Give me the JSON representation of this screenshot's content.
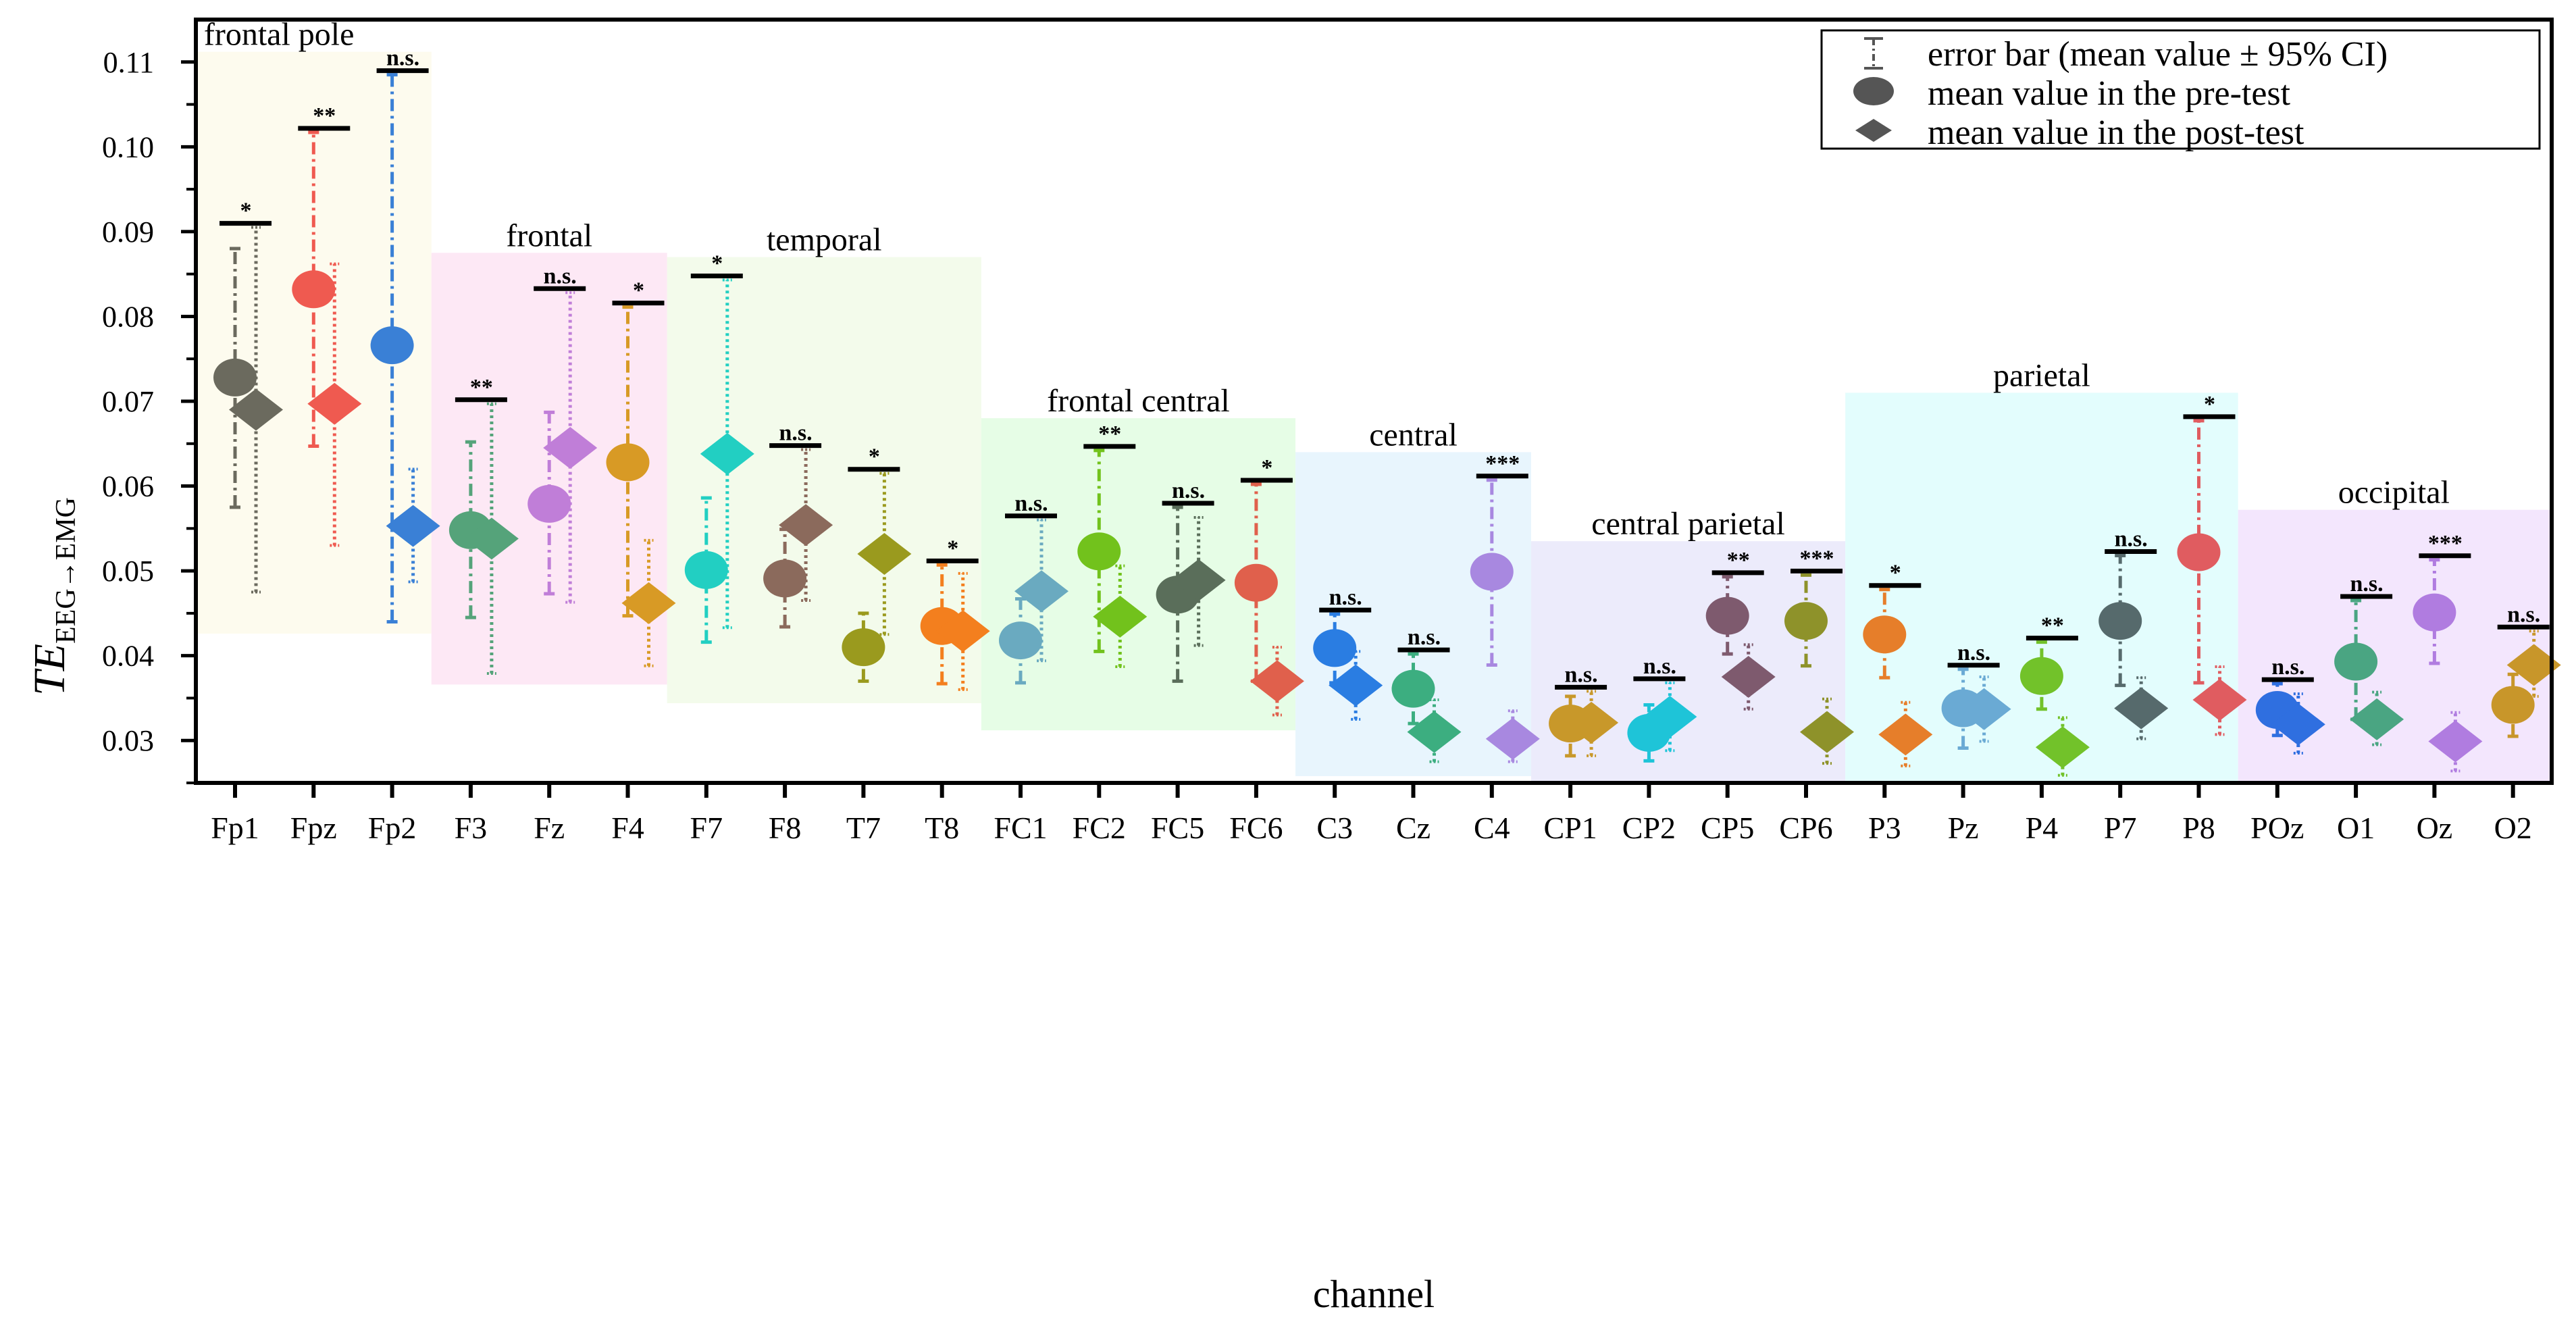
{
  "chart_data": {
    "type": "scatter",
    "title": "",
    "xlabel": "channel",
    "ylabel_main": "TE",
    "ylabel_sub": "EEG→EMG",
    "ylim": [
      0.025,
      0.115
    ],
    "yticks": [
      0.03,
      0.04,
      0.05,
      0.06,
      0.07,
      0.08,
      0.09,
      0.1,
      0.11
    ],
    "ytick_labels": [
      "0.03",
      "0.04",
      "0.05",
      "0.06",
      "0.07",
      "0.08",
      "0.09",
      "0.10",
      "0.11"
    ],
    "grid": false,
    "legend": {
      "placement": "top-right",
      "items": [
        {
          "marker": "errorbar",
          "label": "error bar (mean value ± 95% CI)"
        },
        {
          "marker": "circle",
          "label": "mean value in the pre-test"
        },
        {
          "marker": "diamond",
          "label": "mean value in the post-test"
        }
      ],
      "marker_color": "#555555"
    },
    "regions": [
      {
        "label": "frontal pole",
        "from": 0,
        "to": 2,
        "ymin": 0.0426,
        "ymax": 0.1112,
        "color": "#fdfbee"
      },
      {
        "label": "frontal",
        "from": 3,
        "to": 5,
        "ymin": 0.0366,
        "ymax": 0.0875,
        "color": "#fde8f5"
      },
      {
        "label": "temporal",
        "from": 6,
        "to": 9,
        "ymin": 0.0344,
        "ymax": 0.087,
        "color": "#f3fbeb"
      },
      {
        "label": "frontal central",
        "from": 10,
        "to": 13,
        "ymin": 0.0312,
        "ymax": 0.068,
        "color": "#e6fde6"
      },
      {
        "label": "central",
        "from": 14,
        "to": 16,
        "ymin": 0.0258,
        "ymax": 0.064,
        "color": "#e8f5fd"
      },
      {
        "label": "central parietal",
        "from": 17,
        "to": 20,
        "ymin": 0.025,
        "ymax": 0.0535,
        "color": "#ecebfb"
      },
      {
        "label": "parietal",
        "from": 21,
        "to": 25,
        "ymin": 0.025,
        "ymax": 0.071,
        "color": "#e3fdfd"
      },
      {
        "label": "occipital",
        "from": 26,
        "to": 29,
        "ymin": 0.025,
        "ymax": 0.0572,
        "color": "#f3e6fd"
      }
    ],
    "channels": [
      {
        "name": "Fp1",
        "color": "#6b6a5e",
        "pre": 0.0728,
        "pre_ci": [
          0.0575,
          0.088
        ],
        "post": 0.069,
        "post_ci": [
          0.0475,
          0.0905
        ],
        "sig": "*"
      },
      {
        "name": "Fpz",
        "color": "#ef5a50",
        "pre": 0.0832,
        "pre_ci": [
          0.0647,
          0.1017
        ],
        "post": 0.0697,
        "post_ci": [
          0.053,
          0.0862
        ],
        "sig": "**"
      },
      {
        "name": "Fp2",
        "color": "#3a80d6",
        "pre": 0.0766,
        "pre_ci": [
          0.044,
          0.1085
        ],
        "post": 0.0553,
        "post_ci": [
          0.0487,
          0.062
        ],
        "sig": "n.s."
      },
      {
        "name": "F3",
        "color": "#55a37a",
        "pre": 0.0548,
        "pre_ci": [
          0.0445,
          0.0652
        ],
        "post": 0.0538,
        "post_ci": [
          0.0379,
          0.0697
        ],
        "sig": "**"
      },
      {
        "name": "Fz",
        "color": "#c07ed8",
        "pre": 0.0579,
        "pre_ci": [
          0.0473,
          0.0687
        ],
        "post": 0.0645,
        "post_ci": [
          0.0463,
          0.0828
        ],
        "sig": "n.s."
      },
      {
        "name": "F4",
        "color": "#d89a25",
        "pre": 0.0628,
        "pre_ci": [
          0.0447,
          0.0811
        ],
        "post": 0.0462,
        "post_ci": [
          0.0388,
          0.0536
        ],
        "sig": "*"
      },
      {
        "name": "F7",
        "color": "#22cfc2",
        "pre": 0.0501,
        "pre_ci": [
          0.0416,
          0.0586
        ],
        "post": 0.0638,
        "post_ci": [
          0.0433,
          0.0843
        ],
        "sig": "*"
      },
      {
        "name": "F8",
        "color": "#8b6a5c",
        "pre": 0.0491,
        "pre_ci": [
          0.0434,
          0.0549
        ],
        "post": 0.0554,
        "post_ci": [
          0.0465,
          0.0643
        ],
        "sig": "n.s."
      },
      {
        "name": "T7",
        "color": "#9a9a1e",
        "pre": 0.041,
        "pre_ci": [
          0.037,
          0.045
        ],
        "post": 0.052,
        "post_ci": [
          0.0425,
          0.0615
        ],
        "sig": "*"
      },
      {
        "name": "T8",
        "color": "#f37f1e",
        "pre": 0.0435,
        "pre_ci": [
          0.0367,
          0.0507
        ],
        "post": 0.0429,
        "post_ci": [
          0.036,
          0.0497
        ],
        "sig": "*"
      },
      {
        "name": "FC1",
        "color": "#6aaac0",
        "pre": 0.0418,
        "pre_ci": [
          0.0368,
          0.0467
        ],
        "post": 0.0476,
        "post_ci": [
          0.0394,
          0.056
        ],
        "sig": "n.s."
      },
      {
        "name": "FC2",
        "color": "#72c21c",
        "pre": 0.0523,
        "pre_ci": [
          0.0405,
          0.0642
        ],
        "post": 0.0446,
        "post_ci": [
          0.0387,
          0.0506
        ],
        "sig": "**"
      },
      {
        "name": "FC5",
        "color": "#5a6e5a",
        "pre": 0.0472,
        "pre_ci": [
          0.037,
          0.0575
        ],
        "post": 0.0489,
        "post_ci": [
          0.0412,
          0.0563
        ],
        "sig": "n.s."
      },
      {
        "name": "FC6",
        "color": "#e0604c",
        "pre": 0.0486,
        "pre_ci": [
          0.037,
          0.0602
        ],
        "post": 0.037,
        "post_ci": [
          0.033,
          0.041
        ],
        "sig": "*"
      },
      {
        "name": "C3",
        "color": "#2a7de2",
        "pre": 0.0409,
        "pre_ci": [
          0.0368,
          0.0449
        ],
        "post": 0.0365,
        "post_ci": [
          0.0325,
          0.0405
        ],
        "sig": "n.s."
      },
      {
        "name": "Cz",
        "color": "#3cae80",
        "pre": 0.0361,
        "pre_ci": [
          0.032,
          0.0402
        ],
        "post": 0.031,
        "post_ci": [
          0.0275,
          0.0348
        ],
        "sig": "n.s."
      },
      {
        "name": "C4",
        "color": "#a888e0",
        "pre": 0.0499,
        "pre_ci": [
          0.0389,
          0.0607
        ],
        "post": 0.0302,
        "post_ci": [
          0.0275,
          0.0335
        ],
        "sig": "***"
      },
      {
        "name": "CP1",
        "color": "#c8982a",
        "pre": 0.032,
        "pre_ci": [
          0.0282,
          0.0352
        ],
        "post": 0.0321,
        "post_ci": [
          0.0282,
          0.0358
        ],
        "sig": "n.s."
      },
      {
        "name": "CP2",
        "color": "#1ec4d8",
        "pre": 0.0309,
        "pre_ci": [
          0.0276,
          0.0342
        ],
        "post": 0.0328,
        "post_ci": [
          0.0288,
          0.0368
        ],
        "sig": "n.s."
      },
      {
        "name": "CP5",
        "color": "#7e5a6e",
        "pre": 0.0447,
        "pre_ci": [
          0.0402,
          0.0493
        ],
        "post": 0.0375,
        "post_ci": [
          0.0337,
          0.0413
        ],
        "sig": "**"
      },
      {
        "name": "CP6",
        "color": "#8e922a",
        "pre": 0.0441,
        "pre_ci": [
          0.0388,
          0.0495
        ],
        "post": 0.031,
        "post_ci": [
          0.0273,
          0.0349
        ],
        "sig": "***"
      },
      {
        "name": "P3",
        "color": "#e67e2a",
        "pre": 0.0425,
        "pre_ci": [
          0.0374,
          0.0478
        ],
        "post": 0.0307,
        "post_ci": [
          0.027,
          0.0345
        ],
        "sig": "*"
      },
      {
        "name": "Pz",
        "color": "#6aaad4",
        "pre": 0.0338,
        "pre_ci": [
          0.0291,
          0.0384
        ],
        "post": 0.0337,
        "post_ci": [
          0.0299,
          0.0375
        ],
        "sig": "n.s."
      },
      {
        "name": "P4",
        "color": "#72c22a",
        "pre": 0.0376,
        "pre_ci": [
          0.0337,
          0.0416
        ],
        "post": 0.0292,
        "post_ci": [
          0.0259,
          0.0327
        ],
        "sig": "**"
      },
      {
        "name": "P7",
        "color": "#566a6c",
        "pre": 0.0441,
        "pre_ci": [
          0.0365,
          0.0518
        ],
        "post": 0.0338,
        "post_ci": [
          0.0302,
          0.0374
        ],
        "sig": "n.s."
      },
      {
        "name": "P8",
        "color": "#e05c60",
        "pre": 0.0522,
        "pre_ci": [
          0.0368,
          0.0677
        ],
        "post": 0.0348,
        "post_ci": [
          0.0307,
          0.0387
        ],
        "sig": "*"
      },
      {
        "name": "POz",
        "color": "#2f6fe0",
        "pre": 0.0336,
        "pre_ci": [
          0.0306,
          0.0367
        ],
        "post": 0.0319,
        "post_ci": [
          0.0285,
          0.0355
        ],
        "sig": "n.s."
      },
      {
        "name": "O1",
        "color": "#4aa582",
        "pre": 0.0393,
        "pre_ci": [
          0.0325,
          0.0465
        ],
        "post": 0.0325,
        "post_ci": [
          0.0295,
          0.0357
        ],
        "sig": "n.s."
      },
      {
        "name": "Oz",
        "color": "#b07ce0",
        "pre": 0.0451,
        "pre_ci": [
          0.0391,
          0.0513
        ],
        "post": 0.0299,
        "post_ci": [
          0.0264,
          0.0333
        ],
        "sig": "***"
      },
      {
        "name": "O2",
        "color": "#c8962a",
        "pre": 0.0342,
        "pre_ci": [
          0.0305,
          0.0378
        ],
        "post": 0.0389,
        "post_ci": [
          0.0352,
          0.0429
        ],
        "sig": "n.s."
      }
    ]
  }
}
